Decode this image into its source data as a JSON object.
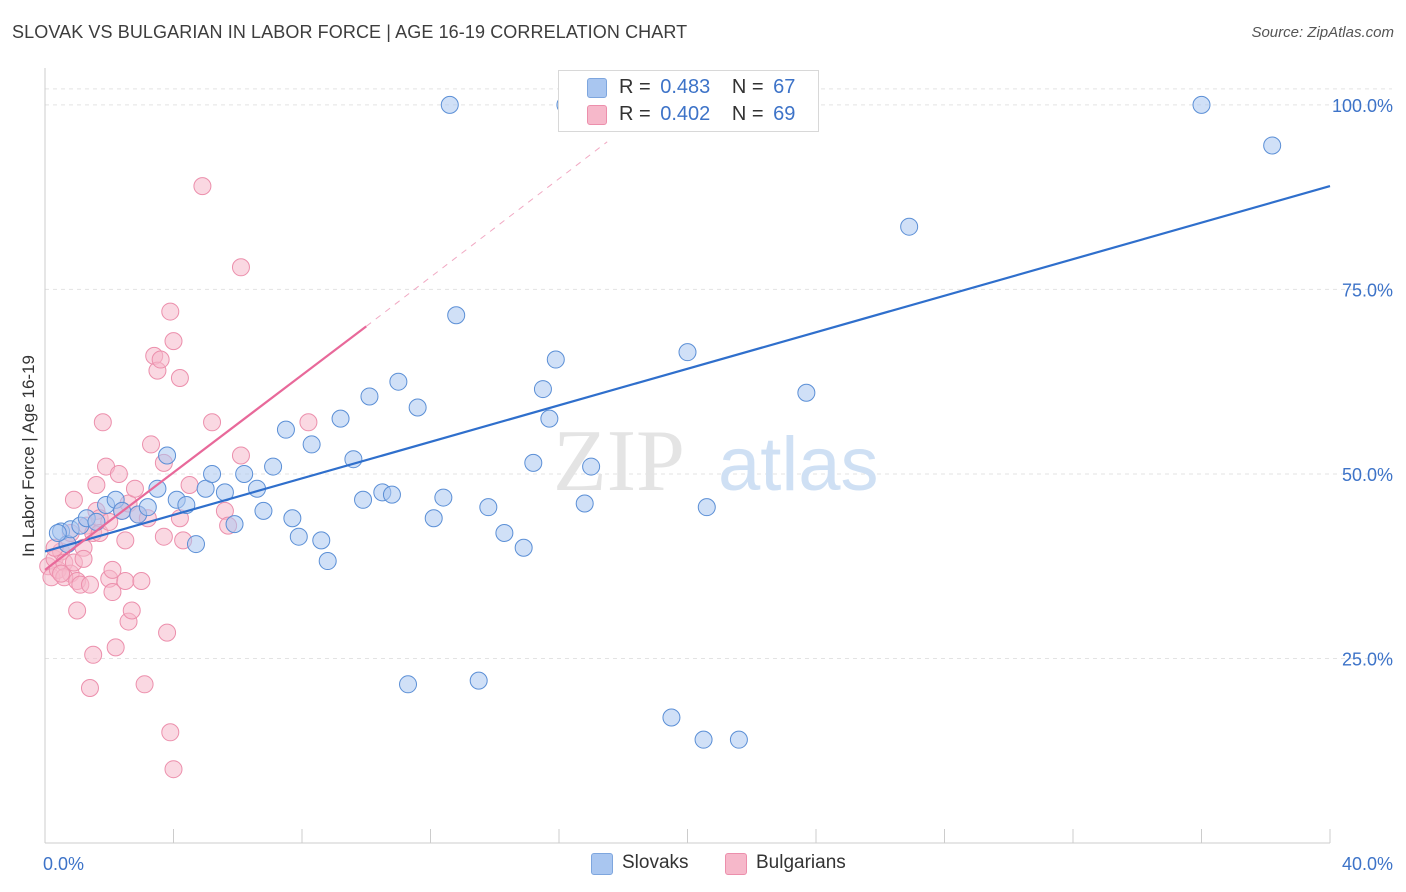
{
  "title": "SLOVAK VS BULGARIAN IN LABOR FORCE | AGE 16-19 CORRELATION CHART",
  "source": "Source: ZipAtlas.com",
  "watermark": {
    "zip": "ZIP",
    "atlas": "atlas"
  },
  "legend": {
    "r_label": "R =",
    "n_label": "N =",
    "rows": [
      {
        "r": "0.483",
        "n": "67",
        "color": "#a9c6f0"
      },
      {
        "r": "0.402",
        "n": "69",
        "color": "#f6b8ca"
      }
    ]
  },
  "bottom_legend": [
    {
      "label": "Slovaks",
      "color": "#a9c6f0"
    },
    {
      "label": "Bulgarians",
      "color": "#f6b8ca"
    }
  ],
  "chart_data": {
    "type": "scatter",
    "title": "SLOVAK VS BULGARIAN IN LABOR FORCE | AGE 16-19 CORRELATION CHART",
    "xlabel": "",
    "ylabel": "In Labor Force | Age 16-19",
    "xlim": [
      0,
      40
    ],
    "ylim": [
      0,
      105
    ],
    "x_tick_labels": [
      "0.0%",
      "40.0%"
    ],
    "y_ticks": [
      25,
      50,
      75,
      100
    ],
    "y_tick_labels": [
      "25.0%",
      "50.0%",
      "75.0%",
      "100.0%"
    ],
    "grid": true,
    "series": [
      {
        "name": "Slovaks",
        "color": "#5b8fd6",
        "fill": "#a9c6f0",
        "line_color": "#2f6fcc",
        "trend": {
          "x": [
            0,
            40
          ],
          "y": [
            39.5,
            89.0
          ]
        },
        "points": [
          [
            0.5,
            42.2
          ],
          [
            0.7,
            40.5
          ],
          [
            0.8,
            42.5
          ],
          [
            1.1,
            43.0
          ],
          [
            1.3,
            44.0
          ],
          [
            1.6,
            43.5
          ],
          [
            1.9,
            45.8
          ],
          [
            2.2,
            46.5
          ],
          [
            2.4,
            45.0
          ],
          [
            2.9,
            44.5
          ],
          [
            3.2,
            45.5
          ],
          [
            3.5,
            48.0
          ],
          [
            3.8,
            52.5
          ],
          [
            4.1,
            46.5
          ],
          [
            4.4,
            45.8
          ],
          [
            4.7,
            40.5
          ],
          [
            5.0,
            48.0
          ],
          [
            5.2,
            50.0
          ],
          [
            5.6,
            47.5
          ],
          [
            5.9,
            43.2
          ],
          [
            6.2,
            50.0
          ],
          [
            6.6,
            48.0
          ],
          [
            6.8,
            45.0
          ],
          [
            7.1,
            51.0
          ],
          [
            7.5,
            56.0
          ],
          [
            7.7,
            44.0
          ],
          [
            7.9,
            41.5
          ],
          [
            8.3,
            54.0
          ],
          [
            8.6,
            41.0
          ],
          [
            8.8,
            38.2
          ],
          [
            9.2,
            57.5
          ],
          [
            9.6,
            52.0
          ],
          [
            9.9,
            46.5
          ],
          [
            10.1,
            60.5
          ],
          [
            10.5,
            47.5
          ],
          [
            10.8,
            47.2
          ],
          [
            11.0,
            62.5
          ],
          [
            11.6,
            59.0
          ],
          [
            12.1,
            44.0
          ],
          [
            12.4,
            46.8
          ],
          [
            12.6,
            100.0
          ],
          [
            12.8,
            71.5
          ],
          [
            13.5,
            22.0
          ],
          [
            13.8,
            45.5
          ],
          [
            14.3,
            42.0
          ],
          [
            14.9,
            40.0
          ],
          [
            15.2,
            51.5
          ],
          [
            15.5,
            61.5
          ],
          [
            15.7,
            57.5
          ],
          [
            15.9,
            65.5
          ],
          [
            16.2,
            100.0
          ],
          [
            16.5,
            100.0
          ],
          [
            17.0,
            51.0
          ],
          [
            16.8,
            46.0
          ],
          [
            19.5,
            17.0
          ],
          [
            20.0,
            66.5
          ],
          [
            20.6,
            45.5
          ],
          [
            20.5,
            14.0
          ],
          [
            21.6,
            14.0
          ],
          [
            23.1,
            100.0
          ],
          [
            23.7,
            61.0
          ],
          [
            26.9,
            83.5
          ],
          [
            36.0,
            100.0
          ],
          [
            38.2,
            94.5
          ],
          [
            11.3,
            21.5
          ],
          [
            21.7,
            100.0
          ],
          [
            0.4,
            42.0
          ]
        ]
      },
      {
        "name": "Bulgarians",
        "color": "#ec8fac",
        "fill": "#f6b8ca",
        "line_color": "#e8699a",
        "trend": {
          "x": [
            0,
            10
          ],
          "y": [
            37.0,
            70.0
          ]
        },
        "trend_dashed": {
          "x": [
            10,
            17.5
          ],
          "y": [
            70.0,
            95.0
          ]
        },
        "points": [
          [
            0.1,
            37.5
          ],
          [
            0.2,
            36.0
          ],
          [
            0.3,
            38.5
          ],
          [
            0.4,
            37.0
          ],
          [
            0.5,
            39.5
          ],
          [
            0.6,
            38.0
          ],
          [
            0.7,
            40.5
          ],
          [
            0.8,
            36.5
          ],
          [
            0.9,
            38.0
          ],
          [
            0.6,
            36.0
          ],
          [
            0.3,
            40.0
          ],
          [
            1.0,
            35.5
          ],
          [
            0.8,
            42.0
          ],
          [
            0.9,
            46.5
          ],
          [
            1.0,
            31.5
          ],
          [
            1.2,
            40.0
          ],
          [
            1.3,
            43.0
          ],
          [
            1.1,
            35.0
          ],
          [
            1.4,
            35.0
          ],
          [
            1.5,
            42.0
          ],
          [
            1.6,
            45.0
          ],
          [
            1.5,
            25.5
          ],
          [
            1.4,
            21.0
          ],
          [
            1.7,
            44.0
          ],
          [
            1.7,
            42.0
          ],
          [
            1.6,
            48.5
          ],
          [
            1.9,
            51.0
          ],
          [
            1.8,
            57.0
          ],
          [
            2.0,
            35.8
          ],
          [
            2.1,
            34.0
          ],
          [
            2.2,
            26.5
          ],
          [
            2.3,
            50.0
          ],
          [
            2.4,
            45.0
          ],
          [
            2.0,
            43.5
          ],
          [
            2.6,
            46.0
          ],
          [
            2.5,
            35.5
          ],
          [
            2.6,
            30.0
          ],
          [
            2.7,
            31.5
          ],
          [
            2.9,
            44.5
          ],
          [
            3.0,
            35.5
          ],
          [
            2.8,
            48.0
          ],
          [
            3.1,
            21.5
          ],
          [
            3.2,
            44.0
          ],
          [
            3.3,
            54.0
          ],
          [
            3.4,
            66.0
          ],
          [
            3.5,
            64.0
          ],
          [
            3.6,
            65.5
          ],
          [
            3.7,
            51.5
          ],
          [
            3.7,
            41.5
          ],
          [
            3.8,
            28.5
          ],
          [
            3.9,
            15.0
          ],
          [
            3.9,
            72.0
          ],
          [
            4.0,
            68.0
          ],
          [
            4.2,
            63.0
          ],
          [
            4.2,
            44.0
          ],
          [
            4.3,
            41.0
          ],
          [
            4.5,
            48.5
          ],
          [
            4.9,
            89.0
          ],
          [
            4.0,
            10.0
          ],
          [
            5.2,
            57.0
          ],
          [
            5.6,
            45.0
          ],
          [
            5.7,
            43.0
          ],
          [
            6.1,
            52.5
          ],
          [
            6.1,
            78.0
          ],
          [
            2.1,
            37.0
          ],
          [
            0.5,
            36.5
          ],
          [
            1.2,
            38.5
          ],
          [
            2.5,
            41.0
          ],
          [
            8.2,
            57.0
          ]
        ]
      }
    ]
  }
}
